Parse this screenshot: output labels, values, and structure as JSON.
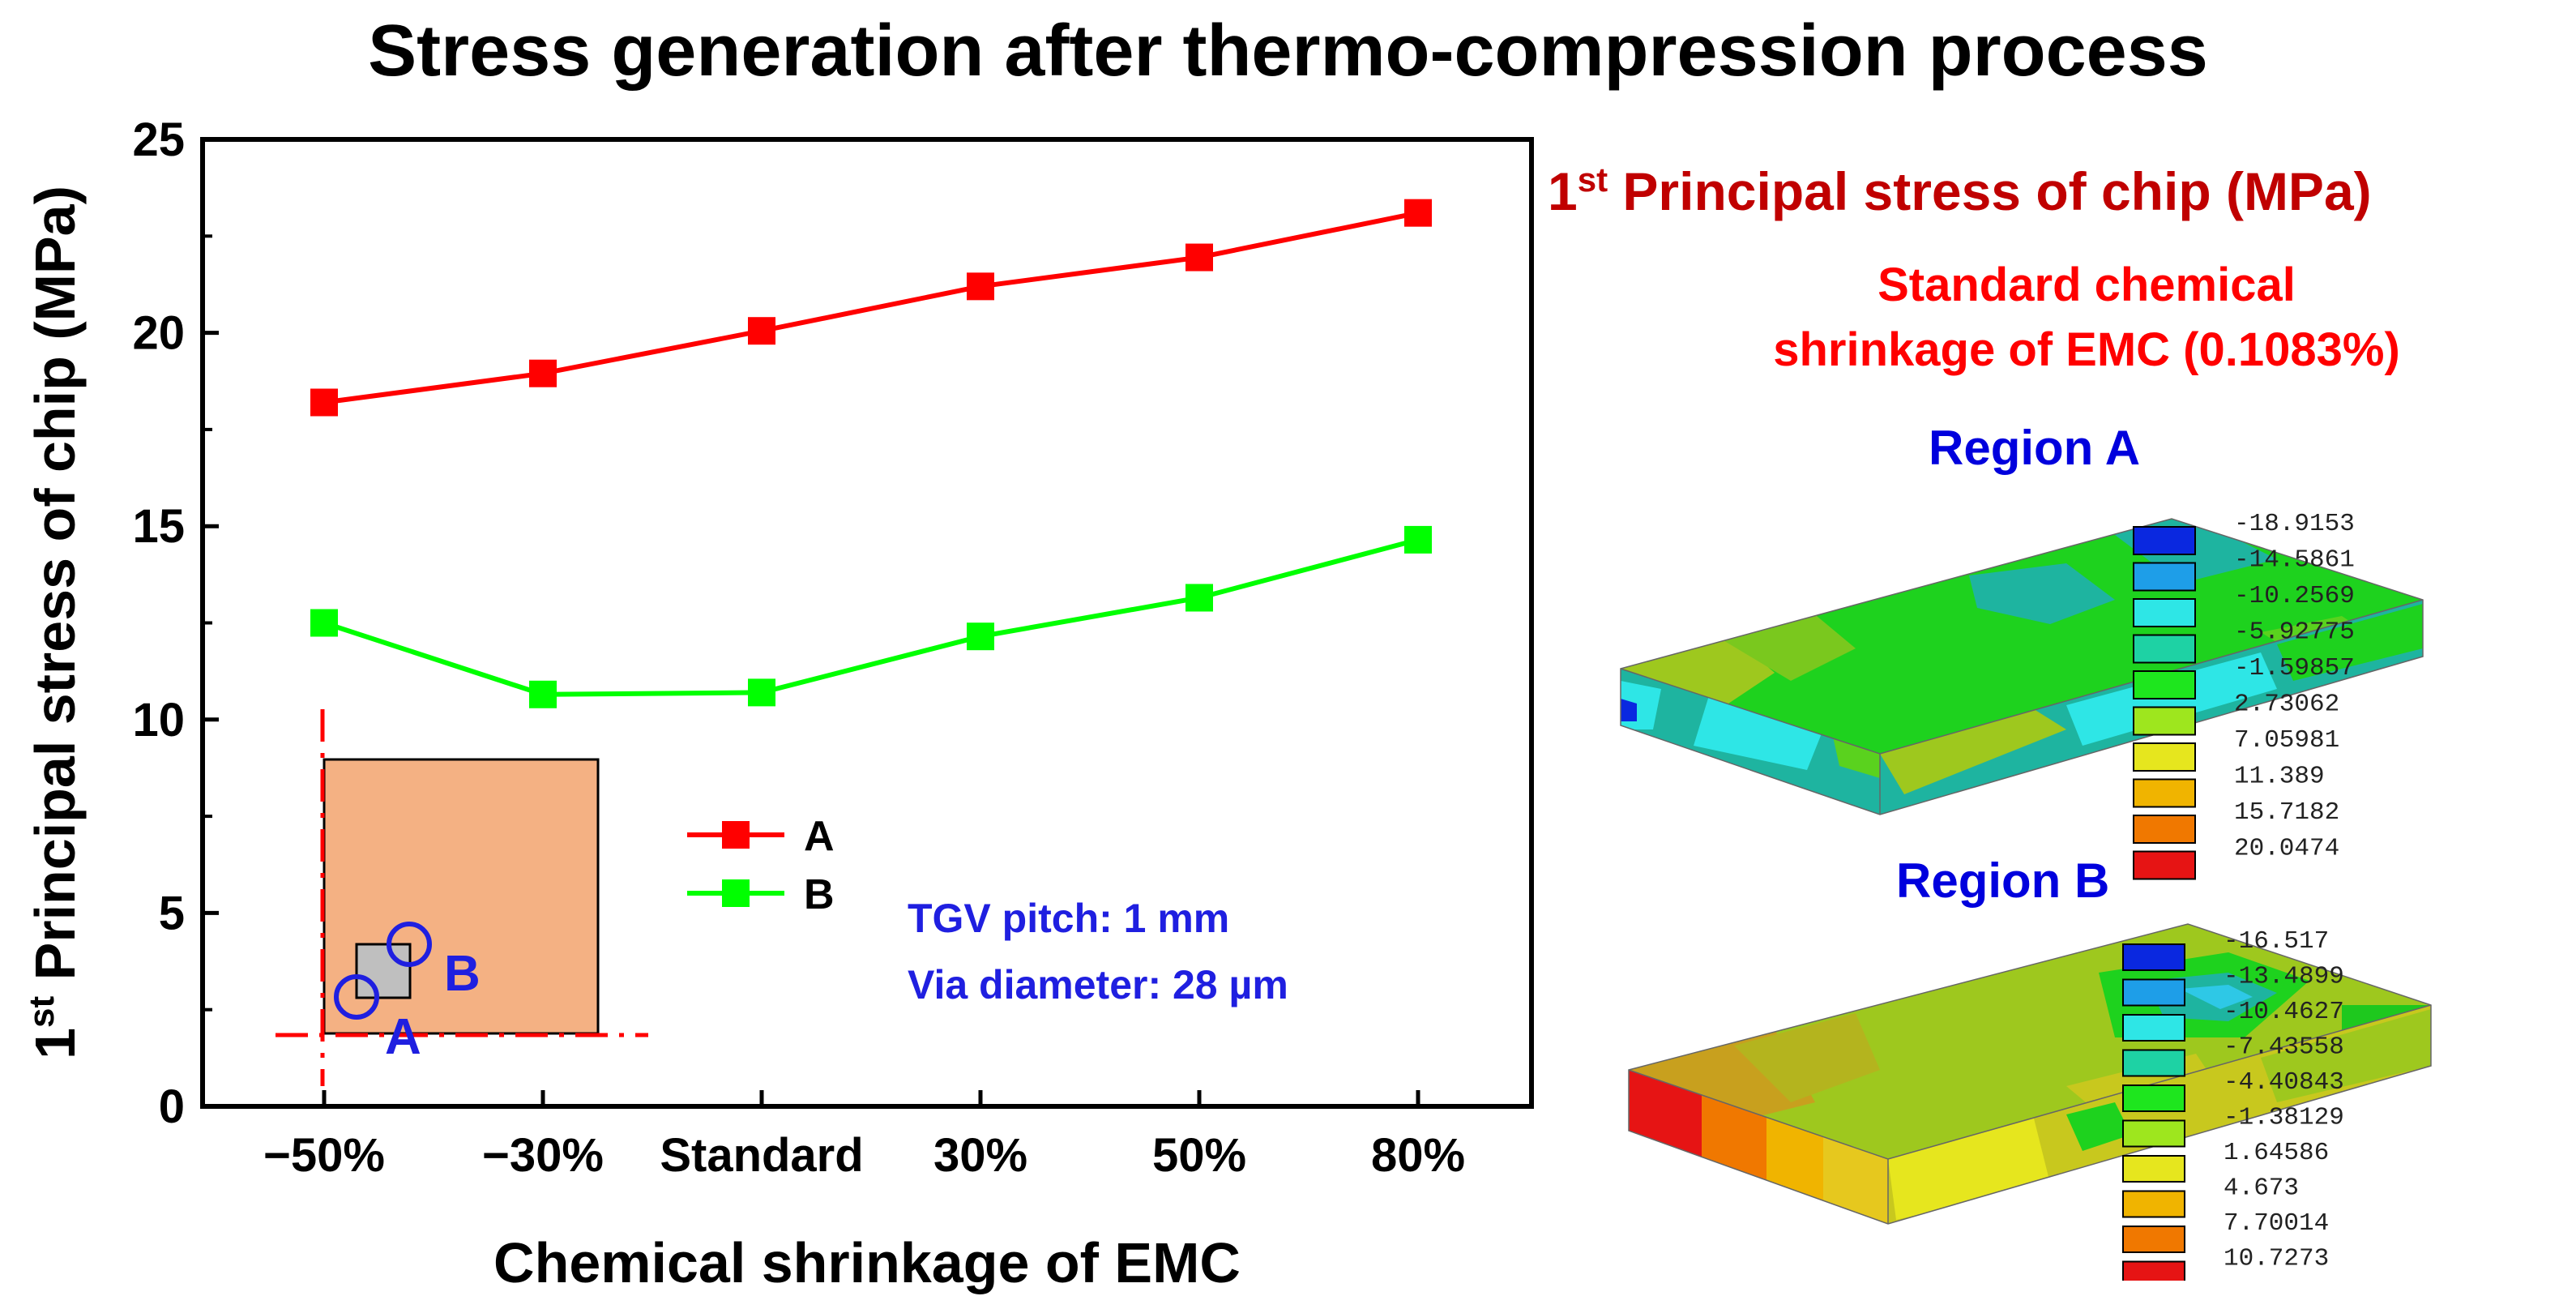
{
  "title": "Stress generation after thermo-compression process",
  "chart_data": {
    "type": "line",
    "categories": [
      "−50%",
      "−30%",
      "Standard",
      "30%",
      "50%",
      "80%"
    ],
    "series": [
      {
        "name": "A",
        "color": "#ff0000",
        "values": [
          18.2,
          18.95,
          20.05,
          21.2,
          21.95,
          23.1
        ]
      },
      {
        "name": "B",
        "color": "#00ff00",
        "values": [
          12.5,
          10.65,
          10.7,
          12.15,
          13.15,
          14.65
        ]
      }
    ],
    "xlabel": "Chemical shrinkage of EMC",
    "ylabel": "1st Principal stress of chip (MPa)",
    "ylabel_parts": {
      "pre": "1",
      "sup": "st",
      "post": " Principal stress of chip (MPa)"
    },
    "ylim": [
      0,
      25
    ],
    "yticks": [
      0,
      5,
      10,
      15,
      20,
      25
    ],
    "grid": false,
    "legend_position": "center"
  },
  "annotations": {
    "tgv_pitch": "TGV pitch: 1 mm",
    "via_diameter": "Via diameter: 28 µm",
    "inset_label_a": "A",
    "inset_label_b": "B"
  },
  "right_panel": {
    "heading_pre": "1",
    "heading_sup": "st",
    "heading_post": " Principal stress of chip (MPa)",
    "subtitle_line1": "Standard chemical",
    "subtitle_line2": "shrinkage of EMC (0.1083%)",
    "region_a": {
      "title": "Region A",
      "legend_values": [
        "-18.9153",
        "-14.5861",
        "-10.2569",
        "-5.92775",
        "-1.59857",
        "2.73062",
        "7.05981",
        "11.389",
        "15.7182",
        "20.0474"
      ]
    },
    "region_b": {
      "title": "Region B",
      "legend_values": [
        "-16.517",
        "-13.4899",
        "-10.4627",
        "-7.43558",
        "-4.40843",
        "-1.38129",
        "1.64586",
        "4.673",
        "7.70014",
        "10.7273"
      ]
    },
    "legend_colors": [
      "#0a28e0",
      "#1e9ee8",
      "#2ee6e6",
      "#1ed2a4",
      "#1ee61e",
      "#9ee61e",
      "#e6e61e",
      "#f0b400",
      "#f07800",
      "#e61414"
    ]
  }
}
